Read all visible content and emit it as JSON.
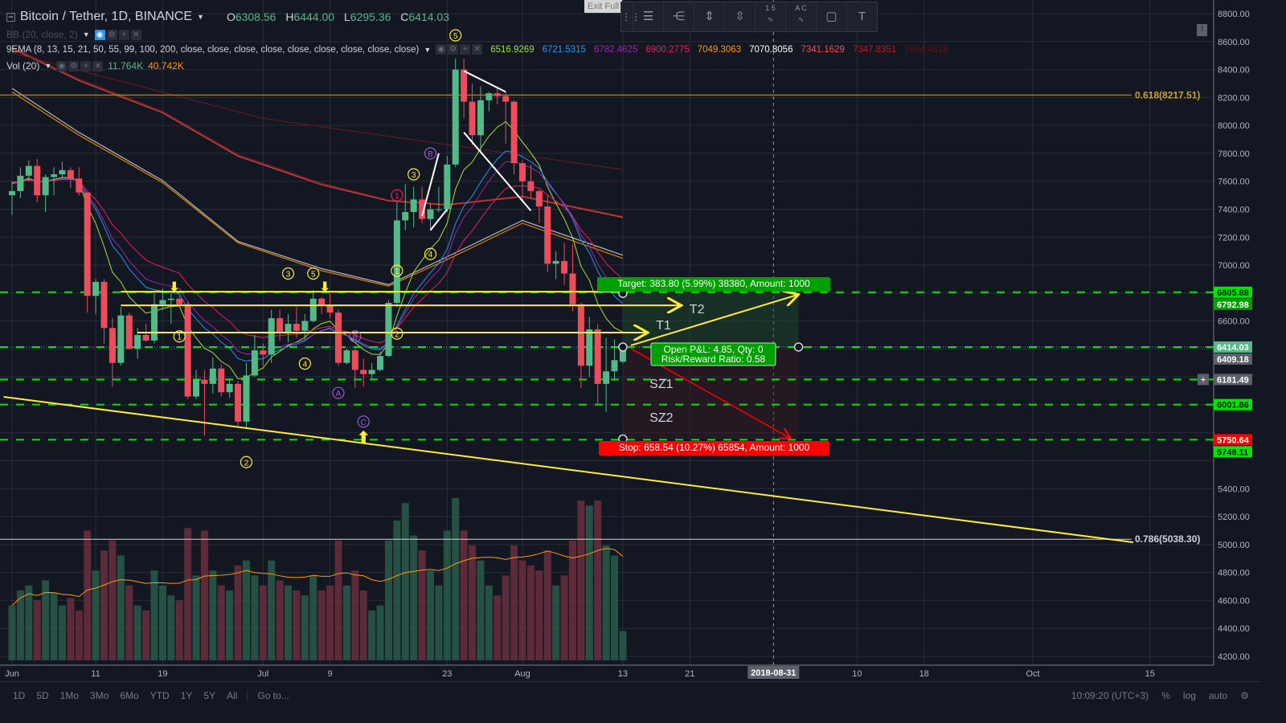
{
  "header": {
    "symbol": "Bitcoin / Tether, 1D, BINANCE",
    "o_label": "O",
    "o": "6308.56",
    "h_label": "H",
    "h": "6444.00",
    "l_label": "L",
    "l": "6295.36",
    "c_label": "C",
    "c": "6414.03"
  },
  "indicators": {
    "bb": {
      "label": "BB (20, close, 2)"
    },
    "ema": {
      "label": "9EMA (8, 13, 15, 21, 50, 55, 99, 100, 200, close, close, close, close, close, close, close, close, close)",
      "values": [
        {
          "v": "6516.9269",
          "color": "#a6e22e"
        },
        {
          "v": "6721.5315",
          "color": "#2196f3"
        },
        {
          "v": "6782.4625",
          "color": "#9c27b0"
        },
        {
          "v": "6900.2775",
          "color": "#e91e63"
        },
        {
          "v": "7049.3063",
          "color": "#ff9800"
        },
        {
          "v": "7070.8056",
          "color": "#ffffff"
        },
        {
          "v": "7341.1629",
          "color": "#ef5350"
        },
        {
          "v": "7347.8351",
          "color": "#b71c1c"
        },
        {
          "v": "7684.4818",
          "color": "#5d1515"
        }
      ]
    },
    "vol": {
      "label": "Vol (20)",
      "value": "11.764K",
      "ma": "40.742K"
    }
  },
  "exit_fullscreen": "Exit Full",
  "drawing_toolbar": [
    "horizontal-lines-icon",
    "pitchfork-icon",
    "fib-retracement-icon",
    "fib-extension-icon",
    "elliott-impulse-icon",
    "elliott-correction-icon",
    "rectangle-icon",
    "text-icon"
  ],
  "drawing_toolbar_text": {
    "impulse": "1 5",
    "correction": "A C"
  },
  "chart_data": {
    "type": "candlestick",
    "title": "Bitcoin / Tether, 1D, BINANCE",
    "ylim": [
      4200,
      8800
    ],
    "ytick_step": 200,
    "xlim": [
      "2018-05-31",
      "2018-10-22"
    ],
    "x_ticks": [
      {
        "d": "2018-06-01",
        "t": "Jun"
      },
      {
        "d": "2018-06-11",
        "t": "11"
      },
      {
        "d": "2018-06-19",
        "t": "19"
      },
      {
        "d": "2018-07-01",
        "t": "Jul"
      },
      {
        "d": "2018-07-09",
        "t": "9"
      },
      {
        "d": "2018-07-23",
        "t": "23"
      },
      {
        "d": "2018-08-01",
        "t": "Aug"
      },
      {
        "d": "2018-08-13",
        "t": "13"
      },
      {
        "d": "2018-08-21",
        "t": "21"
      },
      {
        "d": "2018-09-10",
        "t": "10"
      },
      {
        "d": "2018-09-18",
        "t": "18"
      },
      {
        "d": "2018-10-01",
        "t": "Oct"
      },
      {
        "d": "2018-10-15",
        "t": "15"
      }
    ],
    "crosshair_date": "2018-08-31",
    "grid": true,
    "colors": {
      "up": "#53b987",
      "down": "#eb4d5c"
    },
    "candles": [
      [
        "2018-06-01",
        7500,
        7600,
        7360,
        7530
      ],
      [
        "2018-06-02",
        7530,
        7700,
        7480,
        7640
      ],
      [
        "2018-06-03",
        7640,
        7750,
        7600,
        7710
      ],
      [
        "2018-06-04",
        7710,
        7760,
        7450,
        7500
      ],
      [
        "2018-06-05",
        7500,
        7650,
        7380,
        7630
      ],
      [
        "2018-06-06",
        7630,
        7700,
        7500,
        7650
      ],
      [
        "2018-06-07",
        7650,
        7740,
        7620,
        7680
      ],
      [
        "2018-06-08",
        7680,
        7700,
        7550,
        7620
      ],
      [
        "2018-06-09",
        7620,
        7700,
        7500,
        7520
      ],
      [
        "2018-06-10",
        7520,
        7520,
        6660,
        6780
      ],
      [
        "2018-06-11",
        6780,
        6900,
        6650,
        6880
      ],
      [
        "2018-06-12",
        6880,
        6900,
        6440,
        6550
      ],
      [
        "2018-06-13",
        6550,
        6620,
        6130,
        6300
      ],
      [
        "2018-06-14",
        6300,
        6700,
        6280,
        6640
      ],
      [
        "2018-06-15",
        6640,
        6660,
        6400,
        6400
      ],
      [
        "2018-06-16",
        6400,
        6550,
        6330,
        6500
      ],
      [
        "2018-06-17",
        6500,
        6580,
        6450,
        6460
      ],
      [
        "2018-06-18",
        6460,
        6800,
        6440,
        6720
      ],
      [
        "2018-06-19",
        6720,
        6830,
        6680,
        6750
      ],
      [
        "2018-06-20",
        6750,
        6800,
        6580,
        6760
      ],
      [
        "2018-06-21",
        6760,
        6780,
        6700,
        6720
      ],
      [
        "2018-06-22",
        6720,
        6740,
        6040,
        6060
      ],
      [
        "2018-06-23",
        6060,
        6250,
        6040,
        6180
      ],
      [
        "2018-06-24",
        6180,
        6250,
        5780,
        6150
      ],
      [
        "2018-06-25",
        6150,
        6340,
        6080,
        6260
      ],
      [
        "2018-06-26",
        6260,
        6290,
        6060,
        6090
      ],
      [
        "2018-06-27",
        6090,
        6190,
        6050,
        6150
      ],
      [
        "2018-06-28",
        6150,
        6170,
        5850,
        5880
      ],
      [
        "2018-06-29",
        5880,
        6300,
        5830,
        6210
      ],
      [
        "2018-06-30",
        6210,
        6500,
        6200,
        6390
      ],
      [
        "2018-07-01",
        6390,
        6440,
        6280,
        6360
      ],
      [
        "2018-07-02",
        6360,
        6680,
        6300,
        6620
      ],
      [
        "2018-07-03",
        6620,
        6680,
        6460,
        6520
      ],
      [
        "2018-07-04",
        6520,
        6650,
        6450,
        6580
      ],
      [
        "2018-07-05",
        6580,
        6700,
        6480,
        6530
      ],
      [
        "2018-07-06",
        6530,
        6650,
        6470,
        6600
      ],
      [
        "2018-07-07",
        6600,
        6820,
        6590,
        6760
      ],
      [
        "2018-07-08",
        6760,
        6770,
        6650,
        6710
      ],
      [
        "2018-07-09",
        6710,
        6800,
        6620,
        6660
      ],
      [
        "2018-07-10",
        6660,
        6680,
        6280,
        6300
      ],
      [
        "2018-07-11",
        6300,
        6400,
        6290,
        6390
      ],
      [
        "2018-07-12",
        6390,
        6400,
        6120,
        6250
      ],
      [
        "2018-07-13",
        6250,
        6330,
        6130,
        6220
      ],
      [
        "2018-07-14",
        6220,
        6300,
        6180,
        6250
      ],
      [
        "2018-07-15",
        6250,
        6380,
        6240,
        6350
      ],
      [
        "2018-07-16",
        6350,
        6750,
        6340,
        6730
      ],
      [
        "2018-07-17",
        6730,
        7450,
        6700,
        7320
      ],
      [
        "2018-07-18",
        7320,
        7580,
        7250,
        7380
      ],
      [
        "2018-07-19",
        7380,
        7560,
        7270,
        7470
      ],
      [
        "2018-07-20",
        7470,
        7560,
        7300,
        7330
      ],
      [
        "2018-07-21",
        7330,
        7440,
        7260,
        7400
      ],
      [
        "2018-07-22",
        7400,
        7560,
        7380,
        7400
      ],
      [
        "2018-07-23",
        7400,
        7780,
        7380,
        7720
      ],
      [
        "2018-07-24",
        7720,
        8480,
        7700,
        8400
      ],
      [
        "2018-07-25",
        8400,
        8480,
        8050,
        8170
      ],
      [
        "2018-07-26",
        8170,
        8300,
        7860,
        7930
      ],
      [
        "2018-07-27",
        7930,
        8280,
        7800,
        8180
      ],
      [
        "2018-07-28",
        8180,
        8240,
        8100,
        8230
      ],
      [
        "2018-07-29",
        8230,
        8280,
        8150,
        8210
      ],
      [
        "2018-07-30",
        8210,
        8240,
        7870,
        8170
      ],
      [
        "2018-07-31",
        8170,
        8180,
        7650,
        7730
      ],
      [
        "2018-08-01",
        7730,
        7750,
        7450,
        7600
      ],
      [
        "2018-08-02",
        7600,
        7720,
        7480,
        7530
      ],
      [
        "2018-08-03",
        7530,
        7540,
        7300,
        7420
      ],
      [
        "2018-08-04",
        7420,
        7500,
        6950,
        7010
      ],
      [
        "2018-08-05",
        7010,
        7100,
        6900,
        7030
      ],
      [
        "2018-08-06",
        7030,
        7160,
        6860,
        6940
      ],
      [
        "2018-08-07",
        6940,
        7150,
        6670,
        6720
      ],
      [
        "2018-08-08",
        6720,
        6730,
        6120,
        6280
      ],
      [
        "2018-08-09",
        6280,
        6630,
        6200,
        6540
      ],
      [
        "2018-08-10",
        6540,
        6580,
        6000,
        6150
      ],
      [
        "2018-08-11",
        6150,
        6480,
        5950,
        6240
      ],
      [
        "2018-08-12",
        6240,
        6470,
        6170,
        6320
      ],
      [
        "2018-08-13",
        6308.56,
        6444,
        6295.36,
        6414.03
      ]
    ],
    "volume_k": [
      22,
      28,
      30,
      24,
      32,
      27,
      22,
      25,
      20,
      52,
      36,
      44,
      48,
      42,
      30,
      22,
      20,
      36,
      30,
      26,
      24,
      53,
      34,
      52,
      36,
      30,
      28,
      38,
      40,
      34,
      30,
      40,
      32,
      30,
      28,
      26,
      34,
      28,
      30,
      48,
      30,
      36,
      28,
      20,
      22,
      48,
      56,
      63,
      50,
      44,
      36,
      30,
      52,
      65,
      52,
      46,
      40,
      30,
      26,
      34,
      46,
      40,
      38,
      36,
      44,
      30,
      34,
      48,
      64,
      62,
      64,
      46,
      42,
      11.764
    ],
    "ema_long": [
      {
        "period": 50,
        "color": "#ff9800",
        "pts": [
          [
            "2018-06-01",
            8240
          ],
          [
            "2018-06-09",
            7930
          ],
          [
            "2018-06-19",
            7590
          ],
          [
            "2018-06-28",
            7160
          ],
          [
            "2018-07-08",
            6960
          ],
          [
            "2018-07-16",
            6850
          ],
          [
            "2018-07-23",
            7040
          ],
          [
            "2018-08-01",
            7300
          ],
          [
            "2018-08-13",
            7049
          ]
        ]
      },
      {
        "period": 55,
        "color": "#d1d4dc",
        "pts": [
          [
            "2018-06-01",
            8265
          ],
          [
            "2018-06-09",
            7950
          ],
          [
            "2018-06-19",
            7605
          ],
          [
            "2018-06-28",
            7170
          ],
          [
            "2018-07-08",
            6975
          ],
          [
            "2018-07-16",
            6860
          ],
          [
            "2018-07-23",
            7060
          ],
          [
            "2018-08-01",
            7320
          ],
          [
            "2018-08-13",
            7071
          ]
        ]
      },
      {
        "period": 99,
        "color": "#ef5350",
        "pts": [
          [
            "2018-06-01",
            8550
          ],
          [
            "2018-06-09",
            8320
          ],
          [
            "2018-06-19",
            8090
          ],
          [
            "2018-06-28",
            7780
          ],
          [
            "2018-07-08",
            7575
          ],
          [
            "2018-07-16",
            7460
          ],
          [
            "2018-07-23",
            7430
          ],
          [
            "2018-08-01",
            7490
          ],
          [
            "2018-08-13",
            7341
          ]
        ]
      },
      {
        "period": 100,
        "color": "#b71c1c",
        "pts": [
          [
            "2018-06-01",
            8560
          ],
          [
            "2018-06-09",
            8330
          ],
          [
            "2018-06-19",
            8100
          ],
          [
            "2018-06-28",
            7790
          ],
          [
            "2018-07-08",
            7585
          ],
          [
            "2018-07-16",
            7465
          ],
          [
            "2018-07-23",
            7435
          ],
          [
            "2018-08-01",
            7495
          ],
          [
            "2018-08-13",
            7348
          ]
        ]
      },
      {
        "period": 200,
        "color": "#6b1d1d",
        "pts": [
          [
            "2018-06-01",
            8520
          ],
          [
            "2018-07-01",
            8050
          ],
          [
            "2018-08-13",
            7684
          ]
        ]
      }
    ],
    "ema_short": [
      {
        "period": 8,
        "color": "#a6e22e"
      },
      {
        "period": 13,
        "color": "#2196f3"
      },
      {
        "period": 15,
        "color": "#9c27b0"
      },
      {
        "period": 21,
        "color": "#e91e63"
      }
    ]
  },
  "drawings": {
    "fib": [
      {
        "label": "0.618(8217.51)",
        "price": 8217.51,
        "color": "#c9a227"
      },
      {
        "label": "0.786(5038.30)",
        "price": 5038.3,
        "color": "#d1d4dc"
      }
    ],
    "trendline": {
      "from": [
        "2018-05-31",
        6057
      ],
      "to": [
        "2018-10-13",
        5016
      ],
      "color": "#ffeb3b"
    },
    "yellow_levels": [
      {
        "price": 6810,
        "from": "2018-06-14",
        "to": "2018-08-13"
      },
      {
        "price": 6712,
        "from": "2018-06-14",
        "to": "2018-08-20",
        "label": "T2"
      },
      {
        "price": 6517,
        "from": "2018-06-16",
        "to": "2018-08-16",
        "label": "T1"
      }
    ],
    "green_dashed": [
      6805.88,
      6414.03,
      6181.49,
      6001.86,
      5750.64
    ],
    "zones": [
      {
        "label": "SZ1",
        "date": "2018-08-16",
        "price": 6120
      },
      {
        "label": "SZ2",
        "date": "2018-08-16",
        "price": 5880
      }
    ],
    "position": {
      "entry": 6414.03,
      "target": 6797.83,
      "stop": 5755.49,
      "from": "2018-08-13",
      "to": "2018-09-03",
      "target_label": "Target: 383.80 (5.99%) 38380, Amount: 1000",
      "stop_label": "Stop: 658.54 (10.27%) 65854, Amount: 1000",
      "pnl_label": "Open P&L: 4.85, Qty: 0",
      "rr_label": "Risk/Reward Ratio: 0.58"
    },
    "wave_labels": [
      {
        "t": "5",
        "d": "2018-07-24",
        "p": 8850,
        "c": "#ffeb3b"
      },
      {
        "t": "3",
        "d": "2018-07-19",
        "p": 7650,
        "c": "#ffeb3b"
      },
      {
        "t": "B",
        "d": "2018-07-21",
        "p": 7800,
        "c": "#9c5bd6"
      },
      {
        "t": "1",
        "d": "2018-07-17",
        "p": 7500,
        "c": "#e91e63"
      },
      {
        "t": "4",
        "d": "2018-07-21",
        "p": 7080,
        "c": "#ffeb3b"
      },
      {
        "t": "1",
        "d": "2018-07-17",
        "p": 6960,
        "c": "#ffeb3b"
      },
      {
        "t": "2",
        "d": "2018-07-17",
        "p": 6510,
        "c": "#ffeb3b"
      },
      {
        "t": "3",
        "d": "2018-07-04",
        "p": 6940,
        "c": "#ffeb3b"
      },
      {
        "t": "5",
        "d": "2018-07-07",
        "p": 6940,
        "c": "#ffeb3b"
      },
      {
        "t": "1",
        "d": "2018-06-21",
        "p": 6490,
        "c": "#ffeb3b"
      },
      {
        "t": "4",
        "d": "2018-07-06",
        "p": 6295,
        "c": "#ffeb3b"
      },
      {
        "t": "B",
        "d": "2018-07-12",
        "p": 6490,
        "c": "#9c5bd6"
      },
      {
        "t": "A",
        "d": "2018-07-10",
        "p": 6085,
        "c": "#9c5bd6"
      },
      {
        "t": "C",
        "d": "2018-07-13",
        "p": 5880,
        "c": "#9c5bd6"
      },
      {
        "t": "2",
        "d": "2018-06-29",
        "p": 5590,
        "c": "#ffeb3b"
      }
    ],
    "arrows_down": [
      [
        "2018-06-20",
        6900
      ],
      [
        "2018-07-08",
        6900
      ]
    ],
    "arrows_up": [
      [
        "2018-07-13",
        5760
      ]
    ],
    "price_labels": [
      {
        "t": "6805.88",
        "p": 6805.88,
        "bg": "#00e600",
        "fg": "#131722"
      },
      {
        "t": "6792.98",
        "p": 6792.98,
        "bg": "#00a000",
        "fg": "#fff"
      },
      {
        "t": "6414.03",
        "p": 6414.03,
        "bg": "#53b987",
        "fg": "#fff"
      },
      {
        "t": "6409.18",
        "p": 6409.18,
        "bg": "#5d606b",
        "fg": "#fff"
      },
      {
        "t": "6181.49",
        "p": 6181.49,
        "bg": "#5d606b",
        "fg": "#fff"
      },
      {
        "t": "6001.86",
        "p": 6001.86,
        "bg": "#00e600",
        "fg": "#131722"
      },
      {
        "t": "5750.64",
        "p": 5750.64,
        "bg": "#ff0000",
        "fg": "#fff"
      },
      {
        "t": "5748.11",
        "p": 5748.11,
        "bg": "#00e600",
        "fg": "#131722"
      }
    ]
  },
  "bottom": {
    "ranges": [
      "1D",
      "5D",
      "1Mo",
      "3Mo",
      "6Mo",
      "YTD",
      "1Y",
      "5Y",
      "All"
    ],
    "goto": "Go to...",
    "time": "10:09:20 (UTC+3)",
    "percent": "%",
    "log": "log",
    "auto": "auto"
  }
}
